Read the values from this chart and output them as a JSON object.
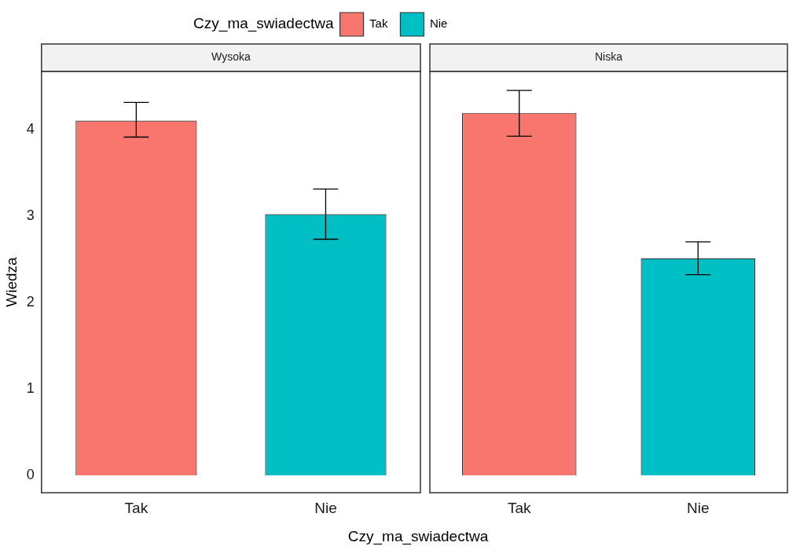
{
  "chart_data": [
    {
      "type": "bar",
      "title": "Wysoka",
      "categories": [
        "Tak",
        "Nie"
      ],
      "series": [
        {
          "name": "Tak",
          "color": "#f8766d",
          "values": [
            4.1,
            null
          ],
          "errors": [
            [
              3.91,
              4.31
            ],
            null
          ]
        },
        {
          "name": "Nie",
          "color": "#00bfc4",
          "values": [
            null,
            3.02
          ],
          "errors": [
            null,
            [
              2.73,
              3.31
            ]
          ]
        }
      ],
      "ylim": [
        -0.2,
        4.67
      ],
      "yticks": [
        0,
        1,
        2,
        3,
        4
      ],
      "ylabel": "Wiedza",
      "xlabel": "Czy_ma_swiadectwa",
      "legend": "top",
      "legend_title": "Czy_ma_swiadectwa",
      "grid": false
    },
    {
      "type": "bar",
      "title": "Niska",
      "categories": [
        "Tak",
        "Nie"
      ],
      "series": [
        {
          "color": "#f8766d",
          "values": [
            4.19,
            null
          ],
          "errors": [
            [
              3.92,
              4.45
            ],
            null
          ]
        },
        {
          "color": "#00bfc4",
          "values": [
            null,
            2.51
          ],
          "errors": [
            null,
            [
              2.32,
              2.7
            ]
          ]
        }
      ],
      "ylim": [
        -0.2,
        4.67
      ],
      "yticks": [
        0,
        1,
        2,
        3,
        4
      ],
      "tick_labels": "x",
      "grid": false
    }
  ]
}
